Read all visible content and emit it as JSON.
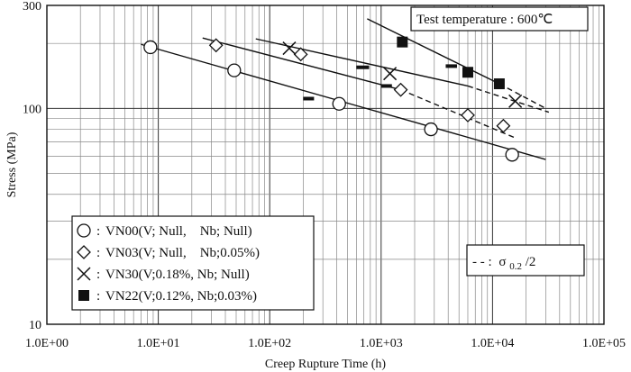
{
  "chart_data": {
    "type": "scatter",
    "x_scale": "log",
    "y_scale": "log",
    "xlabel": "Creep Rupture Time  (h)",
    "ylabel": "Stress  (MPa)",
    "xlim": [
      1,
      100000
    ],
    "ylim": [
      10,
      300
    ],
    "x_tick_labels": [
      "1.0E+00",
      "1.0E+01",
      "1.0E+02",
      "1.0E+03",
      "1.0E+04",
      "1.0E+05"
    ],
    "y_tick_labels": [
      "10",
      "100",
      "300"
    ],
    "grid": true,
    "annotation": "Test temperature : 600℃",
    "dash_legend": "- - : σ0.2/2",
    "dash_legend_parts": {
      "prefix": "- - :",
      "sigma": "σ",
      "sub": "0.2",
      "suffix": "/2"
    },
    "legend_position": "bottom-left",
    "series": [
      {
        "name": "VN00(V; Null,    Nb; Null)",
        "symbol": "circle",
        "points": [
          [
            8.5,
            192
          ],
          [
            48,
            150
          ],
          [
            420,
            105
          ],
          [
            2800,
            80
          ],
          [
            15000,
            61
          ]
        ],
        "fit": [
          [
            7,
            198
          ],
          [
            30000,
            58
          ]
        ],
        "sigma_half": 111,
        "sigma_half_x": [
          200,
          250
        ]
      },
      {
        "name": "VN03(V; Null,    Nb;0.05%)",
        "symbol": "diamond",
        "points": [
          [
            33,
            196
          ],
          [
            190,
            178
          ],
          [
            1500,
            122
          ],
          [
            6000,
            93
          ],
          [
            12500,
            83
          ]
        ],
        "fit": [
          [
            25,
            212
          ],
          [
            1500,
            122
          ]
        ],
        "fit_dashed": [
          [
            1500,
            122
          ],
          [
            16000,
            73
          ]
        ],
        "sigma_half": 127,
        "sigma_half_x": [
          1000,
          1250
        ]
      },
      {
        "name": "VN30(V;0.18%, Nb; Null)",
        "symbol": "cross",
        "points": [
          [
            150,
            190
          ],
          [
            1200,
            145
          ],
          [
            16000,
            108
          ]
        ],
        "fit": [
          [
            75,
            210
          ],
          [
            6000,
            127
          ]
        ],
        "fit_dashed": [
          [
            6000,
            127
          ],
          [
            32000,
            96
          ]
        ],
        "sigma_half": 155,
        "sigma_half_x": [
          600,
          780
        ]
      },
      {
        "name": "VN22(V;0.12%, Nb;0.03%)",
        "symbol": "square",
        "points": [
          [
            1550,
            203
          ],
          [
            6000,
            147
          ],
          [
            11500,
            130
          ]
        ],
        "fit": [
          [
            750,
            260
          ],
          [
            11500,
            130
          ]
        ],
        "fit_dashed": [
          [
            11500,
            130
          ],
          [
            30000,
            100
          ]
        ],
        "sigma_half": 157,
        "sigma_half_x": [
          3800,
          4800
        ]
      }
    ]
  }
}
